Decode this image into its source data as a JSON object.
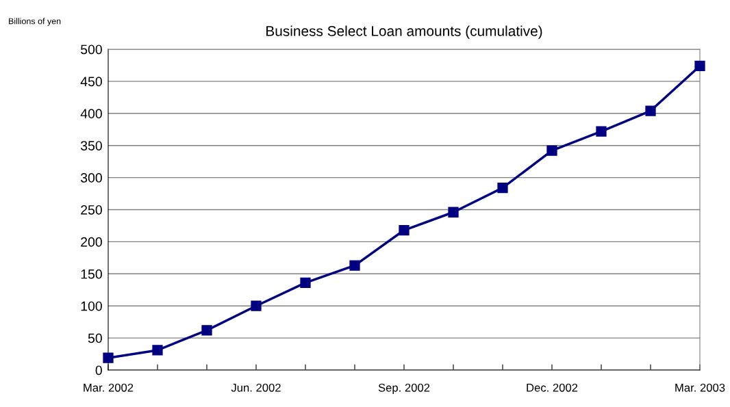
{
  "chart_data": {
    "type": "line",
    "title": "Business Select Loan amounts (cumulative)",
    "ylabel": "Billions of yen",
    "categories": [
      "Mar. 2002",
      null,
      null,
      "Jun. 2002",
      null,
      null,
      "Sep. 2002",
      null,
      null,
      "Dec. 2002",
      null,
      null,
      "Mar. 2003"
    ],
    "series": [
      {
        "color": "#000080",
        "values": [
          19,
          31,
          62,
          100,
          136,
          163,
          218,
          246,
          284,
          342,
          372,
          404,
          474
        ]
      }
    ],
    "ylim": [
      0,
      500
    ],
    "yticks": [
      0,
      50,
      100,
      150,
      200,
      250,
      300,
      350,
      400,
      450,
      500
    ],
    "grid": "y",
    "marker": "square",
    "line_style": "solid"
  }
}
